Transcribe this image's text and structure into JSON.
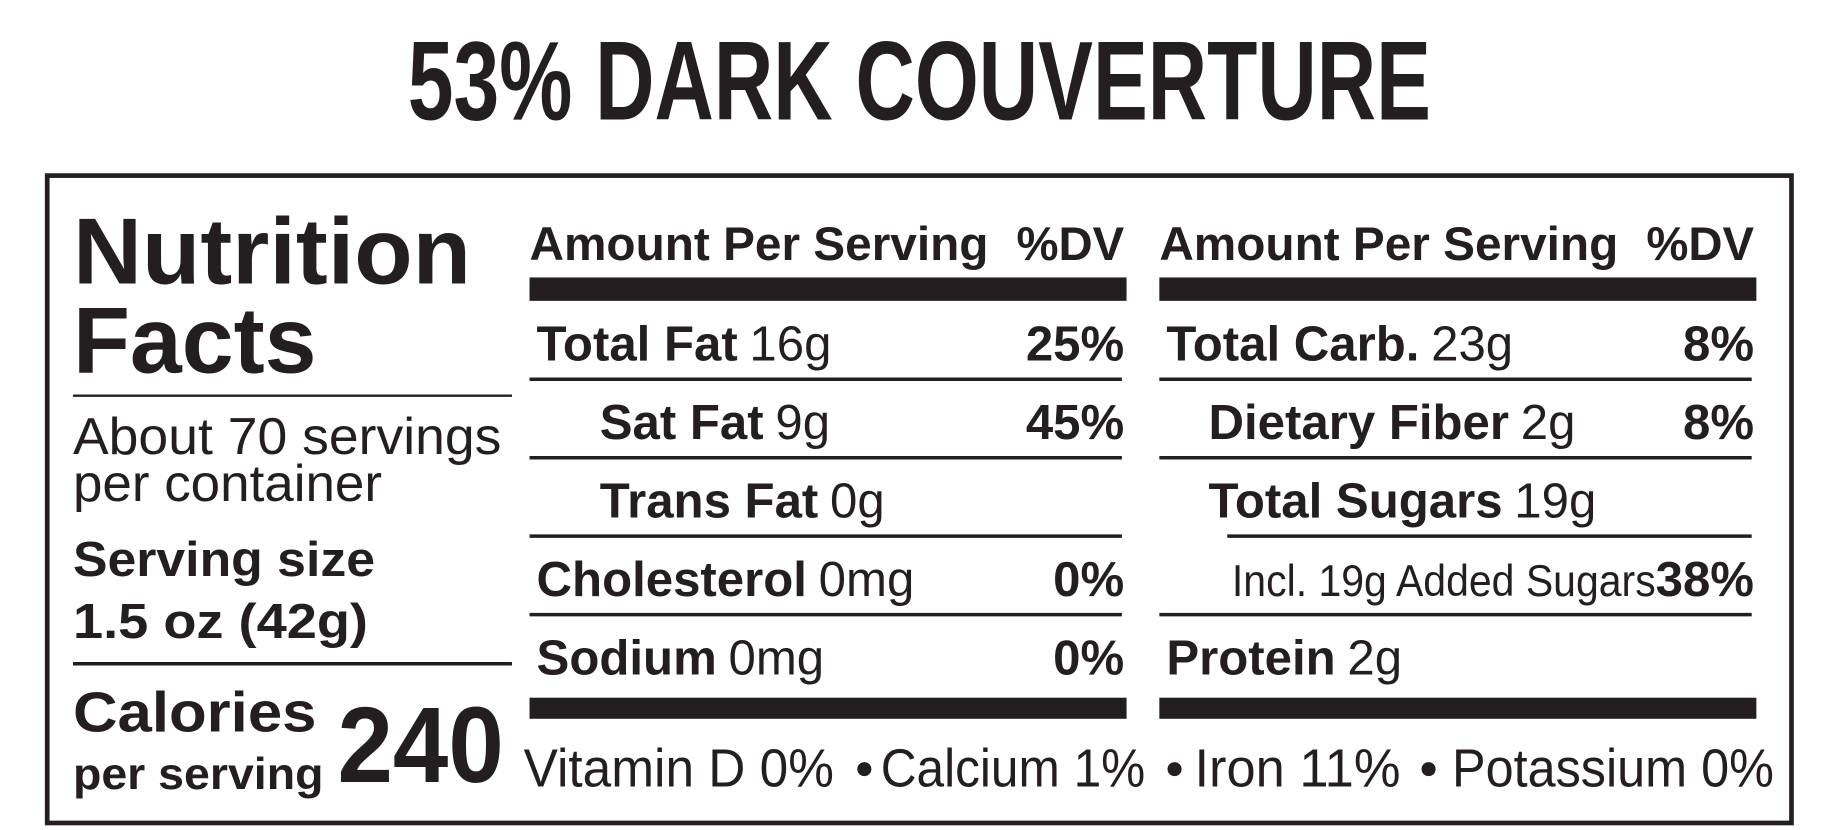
{
  "title": "53% DARK COUVERTURE",
  "label": {
    "heading": [
      "Nutrition",
      "Facts"
    ],
    "servings": [
      "About 70 servings",
      "per container"
    ],
    "serving_size": [
      "Serving size",
      "1.5 oz (42g)"
    ],
    "calories": {
      "label": [
        "Calories",
        "per serving"
      ],
      "value": 240
    },
    "columns": [
      {
        "header": {
          "amount": "Amount Per Serving",
          "dv": "%DV"
        },
        "rows": [
          {
            "name": "Total Fat",
            "amount": "16g",
            "dv": "25%",
            "sub": [
              {
                "name": "Sat Fat",
                "amount": "9g",
                "dv": "45%"
              },
              {
                "name": "Trans Fat",
                "amount": "0g"
              }
            ]
          },
          {
            "name": "Cholesterol",
            "amount": "0mg",
            "dv": "0%"
          },
          {
            "name": "Sodium",
            "amount": "0mg",
            "dv": "0%"
          }
        ]
      },
      {
        "header": {
          "amount": "Amount Per Serving",
          "dv": "%DV"
        },
        "rows": [
          {
            "name": "Total Carb.",
            "amount": "23g",
            "dv": "8%",
            "sub": [
              {
                "name": "Dietary Fiber",
                "amount": "2g",
                "dv": "8%"
              },
              {
                "name": "Total Sugars",
                "amount": "19g",
                "sub": [
                  {
                    "amount": "Incl. 19g Added Sugars",
                    "dv": "38%"
                  }
                ]
              }
            ]
          },
          {
            "name": "Protein",
            "amount": "2g"
          }
        ]
      }
    ],
    "footer": [
      "Vitamin D 0%",
      "Calcium 1%",
      "Iron 11%",
      "Potassium 0%"
    ]
  }
}
